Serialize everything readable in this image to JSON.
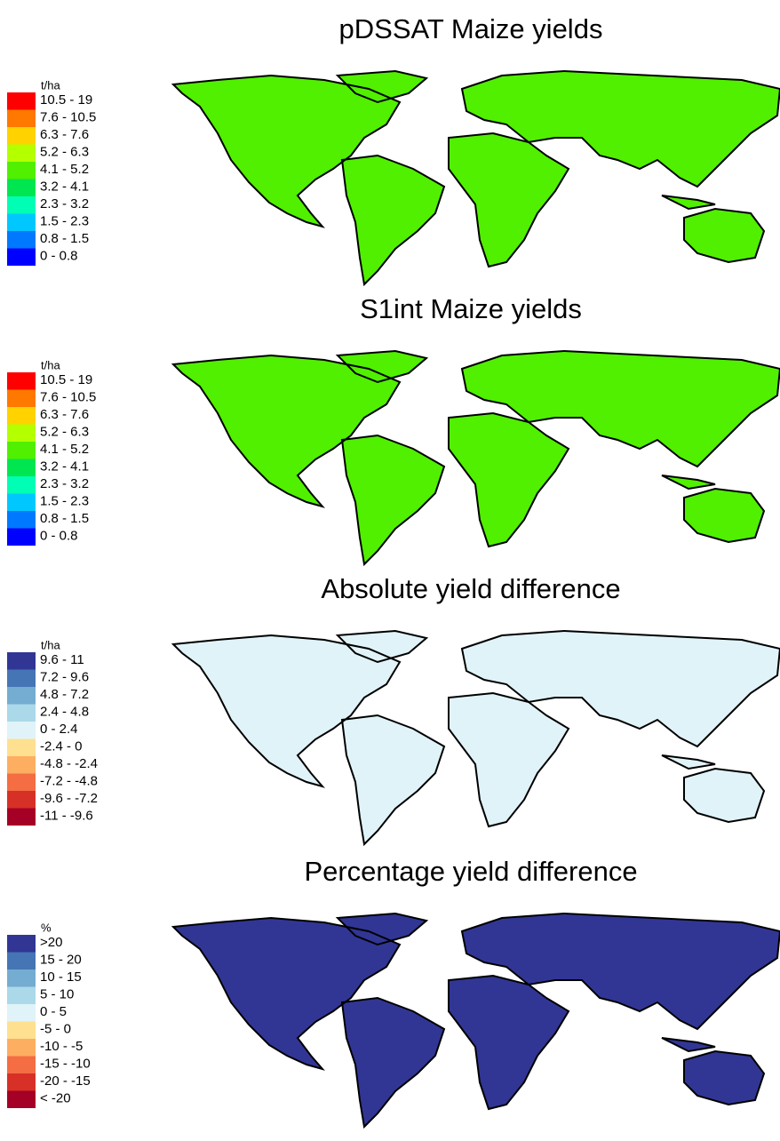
{
  "panels": [
    {
      "title": "pDSSAT Maize yields",
      "legend": {
        "unit": "t/ha",
        "entries": [
          {
            "label": "10.5 - 19",
            "color": "#ff0000"
          },
          {
            "label": "7.6 - 10.5",
            "color": "#ff7800"
          },
          {
            "label": "6.3 - 7.6",
            "color": "#ffd200"
          },
          {
            "label": "5.2 - 6.3",
            "color": "#b4ff00"
          },
          {
            "label": "4.1 - 5.2",
            "color": "#50f000"
          },
          {
            "label": "3.2 - 4.1",
            "color": "#00e650"
          },
          {
            "label": "2.3 - 3.2",
            "color": "#00ffb4"
          },
          {
            "label": "1.5 - 2.3",
            "color": "#00c8ff"
          },
          {
            "label": "0.8 - 1.5",
            "color": "#0078ff"
          },
          {
            "label": "0 - 0.8",
            "color": "#0000ff"
          }
        ]
      }
    },
    {
      "title": "S1int Maize yields",
      "legend": {
        "unit": "t/ha",
        "entries": [
          {
            "label": "10.5 - 19",
            "color": "#ff0000"
          },
          {
            "label": "7.6 - 10.5",
            "color": "#ff7800"
          },
          {
            "label": "6.3 - 7.6",
            "color": "#ffd200"
          },
          {
            "label": "5.2 - 6.3",
            "color": "#b4ff00"
          },
          {
            "label": "4.1 - 5.2",
            "color": "#50f000"
          },
          {
            "label": "3.2 - 4.1",
            "color": "#00e650"
          },
          {
            "label": "2.3 - 3.2",
            "color": "#00ffb4"
          },
          {
            "label": "1.5 - 2.3",
            "color": "#00c8ff"
          },
          {
            "label": "0.8 - 1.5",
            "color": "#0078ff"
          },
          {
            "label": "0 - 0.8",
            "color": "#0000ff"
          }
        ]
      }
    },
    {
      "title": "Absolute yield difference",
      "legend": {
        "unit": "t/ha",
        "entries": [
          {
            "label": "9.6 - 11",
            "color": "#313695"
          },
          {
            "label": "7.2 - 9.6",
            "color": "#4575b4"
          },
          {
            "label": "4.8 - 7.2",
            "color": "#74add1"
          },
          {
            "label": "2.4 - 4.8",
            "color": "#abd9e9"
          },
          {
            "label": "0 - 2.4",
            "color": "#e0f3f8"
          },
          {
            "label": "-2.4 - 0",
            "color": "#fee090"
          },
          {
            "label": "-4.8 - -2.4",
            "color": "#fdae61"
          },
          {
            "label": "-7.2 - -4.8",
            "color": "#f46d43"
          },
          {
            "label": "-9.6 - -7.2",
            "color": "#d73027"
          },
          {
            "label": "-11 - -9.6",
            "color": "#a50026"
          }
        ]
      }
    },
    {
      "title": "Percentage yield difference",
      "legend": {
        "unit": "%",
        "entries": [
          {
            "label": ">20",
            "color": "#313695"
          },
          {
            "label": "15 - 20",
            "color": "#4575b4"
          },
          {
            "label": "10 - 15",
            "color": "#74add1"
          },
          {
            "label": "5 - 10",
            "color": "#abd9e9"
          },
          {
            "label": "0 - 5",
            "color": "#e0f3f8"
          },
          {
            "label": "-5 - 0",
            "color": "#fee090"
          },
          {
            "label": "-10 - -5",
            "color": "#fdae61"
          },
          {
            "label": "-15 - -10",
            "color": "#f46d43"
          },
          {
            "label": "-20 - -15",
            "color": "#d73027"
          },
          {
            "label": "< -20",
            "color": "#a50026"
          }
        ]
      }
    }
  ]
}
